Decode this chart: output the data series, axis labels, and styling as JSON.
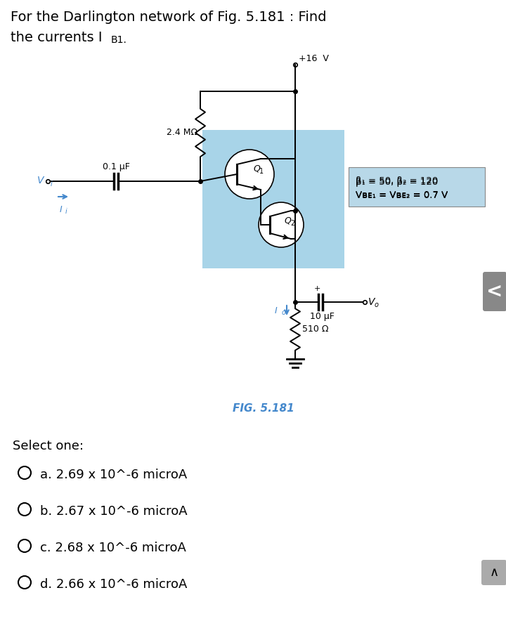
{
  "title_line1": "For the Darlington network of Fig. 5.181 : Find",
  "title_line2": "the currents I",
  "title_sub": "B1.",
  "bg_color": "#ffffff",
  "circuit_bg_color": "#a8d4e8",
  "supply_voltage": "+16  V",
  "resistor1_label": "2.4 MΩ",
  "capacitor_label": "0.1 μF",
  "vi_label": "V",
  "vi_sub": "i",
  "ii_label": "I",
  "ii_sub": "i",
  "q1_label": "Q",
  "q1_sub": "1",
  "q2_label": "Q",
  "q2_sub": "2",
  "beta_line1": "β₁ = 50, β₂ = 120",
  "beta_line2": "Vвᴇ₁ = Vвᴇ₂ = 0.7 V",
  "io_label": "I",
  "io_sub": "o",
  "capacitor2_label": "10 μF",
  "vo_label": "V",
  "vo_sub": "o",
  "resistor2_label": "510 Ω",
  "fig_label": "FIG. 5.181",
  "select_one": "Select one:",
  "option_a": "a. 2.69 x 10^-6 microA",
  "option_b": "b. 2.67 x 10^-6 microA",
  "option_c": "c. 2.68 x 10^-6 microA",
  "option_d": "d. 2.66 x 10^-6 microA",
  "arrow_btn_color": "#888888",
  "up_btn_color": "#aaaaaa",
  "vi_color": "#4488cc",
  "ii_color": "#4488cc",
  "io_color": "#4488cc",
  "fig_color": "#4488cc"
}
